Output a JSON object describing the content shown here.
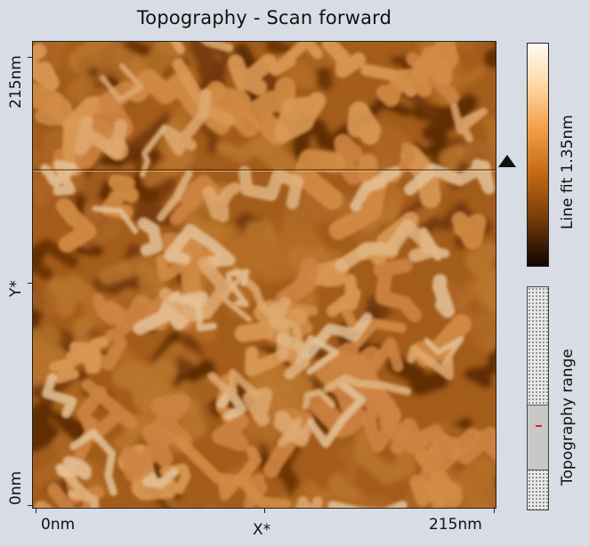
{
  "title": "Topography - Scan forward",
  "axes": {
    "y_label": "Y*",
    "x_label": "X*",
    "y_max": "215nm",
    "y_min": "0nm",
    "x_min": "0nm",
    "x_max": "215nm"
  },
  "colorbar": {
    "label": "Line fit 1.35nm",
    "colors": {
      "high": "#fffaf2",
      "mid": "#c46a14",
      "low": "#120800"
    }
  },
  "range": {
    "label": "Topography range"
  },
  "colors": {
    "background": "#d8dce4",
    "range_marker": "#e02020"
  }
}
